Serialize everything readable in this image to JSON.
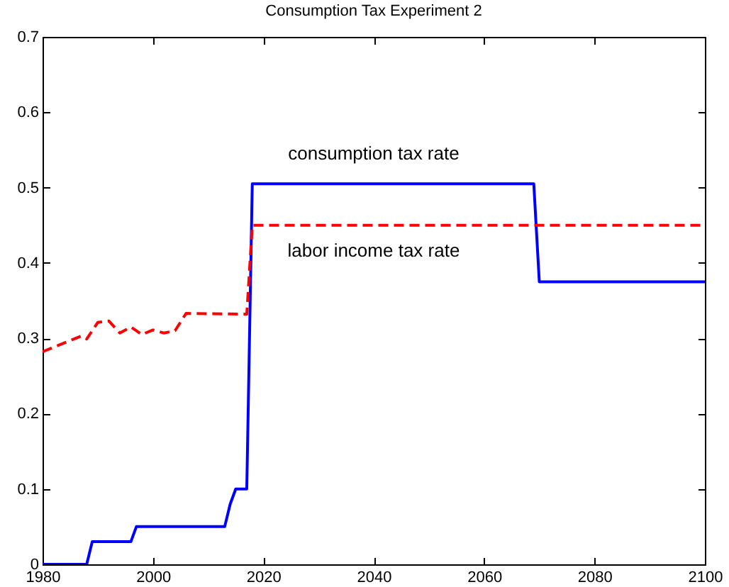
{
  "chart_data": {
    "type": "line",
    "title": "Consumption Tax Experiment 2",
    "series": [
      {
        "name": "consumption tax rate",
        "color": "#0000ff",
        "line_style": "solid",
        "x": [
          1980,
          1988,
          1989,
          1996,
          1997,
          2013,
          2014,
          2015,
          2017,
          2018,
          2069,
          2070,
          2100
        ],
        "values": [
          0,
          0,
          0.03,
          0.03,
          0.05,
          0.05,
          0.08,
          0.1,
          0.1,
          0.505,
          0.505,
          0.375,
          0.375
        ]
      },
      {
        "name": "labor income tax rate",
        "color": "#ff0000",
        "line_style": "dashed",
        "x": [
          1980,
          1987,
          1988,
          1990,
          1992,
          1994,
          1996,
          1998,
          2000,
          2002,
          2004,
          2006,
          2017,
          2018,
          2100
        ],
        "values": [
          0.282,
          0.303,
          0.299,
          0.321,
          0.323,
          0.307,
          0.315,
          0.305,
          0.311,
          0.307,
          0.31,
          0.333,
          0.332,
          0.45,
          0.45
        ]
      }
    ],
    "xlim": [
      1980,
      2100
    ],
    "xticks": [
      1980,
      2000,
      2020,
      2040,
      2060,
      2080,
      2100
    ],
    "ylim": [
      0,
      0.7
    ],
    "yticks": [
      0,
      0.1,
      0.2,
      0.3,
      0.4,
      0.5,
      0.6,
      0.7
    ],
    "grid": false,
    "legend": false,
    "marker": "none"
  }
}
